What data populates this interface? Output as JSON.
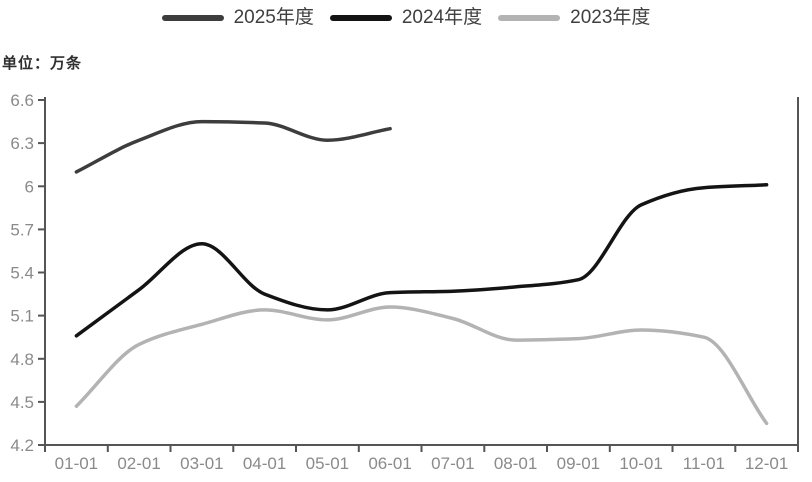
{
  "unit_label": "单位：万条",
  "legend": {
    "items": [
      {
        "label": "2025年度",
        "color": "#3d3d3d"
      },
      {
        "label": "2024年度",
        "color": "#141414"
      },
      {
        "label": "2023年度",
        "color": "#b3b3b3"
      }
    ]
  },
  "chart_data": {
    "type": "line",
    "smooth": true,
    "title": "",
    "unit": "万条",
    "legend_position": "top-center",
    "grid": false,
    "background": "#ffffff",
    "axis_color": "#555555",
    "tick_label_color": "#8a8a8a",
    "categories": [
      "01-01",
      "02-01",
      "03-01",
      "04-01",
      "05-01",
      "06-01",
      "07-01",
      "08-01",
      "09-01",
      "10-01",
      "11-01",
      "12-01"
    ],
    "series": [
      {
        "name": "2025年度",
        "color": "#3d3d3d",
        "values": [
          6.1,
          6.32,
          6.45,
          6.44,
          6.32,
          6.4
        ]
      },
      {
        "name": "2024年度",
        "color": "#141414",
        "values": [
          4.96,
          5.28,
          5.6,
          5.25,
          5.14,
          5.26,
          5.27,
          5.3,
          5.35,
          5.87,
          5.99,
          6.01
        ]
      },
      {
        "name": "2023年度",
        "color": "#b3b3b3",
        "values": [
          4.47,
          4.9,
          5.04,
          5.14,
          5.07,
          5.16,
          5.08,
          4.93,
          4.94,
          5.0,
          4.95,
          4.35
        ]
      }
    ],
    "ylim": [
      4.2,
      6.6
    ],
    "ytick_step": 0.3,
    "yticks": [
      "6.6",
      "6.3",
      "6",
      "5.7",
      "5.4",
      "5.1",
      "4.8",
      "4.5",
      "4.2"
    ]
  }
}
